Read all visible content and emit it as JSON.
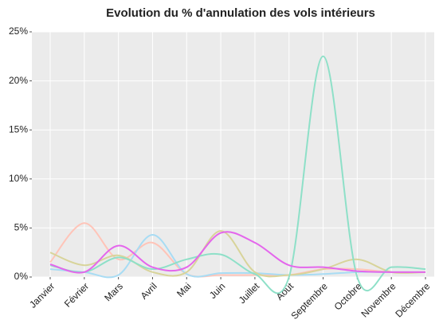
{
  "chart_data": {
    "type": "line",
    "title": "Evolution du % d'annulation des vols intérieurs",
    "categories": [
      "Janvier",
      "Février",
      "Mars",
      "Avril",
      "Mai",
      "Juin",
      "Juillet",
      "Août",
      "Septembre",
      "Octobre",
      "Novembre",
      "Décembre"
    ],
    "series": [
      {
        "color": "#ffc4b8",
        "values": [
          1.5,
          5.5,
          1.8,
          3.5,
          0.3,
          0.2,
          0.2,
          0.2,
          0.8,
          0.8,
          0.5,
          0.5
        ]
      },
      {
        "color": "#a8dcf4",
        "values": [
          0.8,
          0.5,
          0.2,
          4.3,
          0.3,
          0.4,
          0.4,
          0.2,
          0.3,
          0.5,
          0.5,
          0.5
        ]
      },
      {
        "color": "#d8d49a",
        "values": [
          2.5,
          1.2,
          2.2,
          0.5,
          0.5,
          4.7,
          0.5,
          0.2,
          0.8,
          1.8,
          0.5,
          0.5
        ]
      },
      {
        "color": "#8ee0c8",
        "values": [
          1.2,
          0.5,
          2.0,
          0.8,
          1.8,
          2.3,
          0.3,
          0,
          22.5,
          0,
          1.0,
          0.8
        ]
      },
      {
        "color": "#e466ec",
        "values": [
          1.3,
          0.5,
          3.2,
          1.0,
          1.0,
          4.5,
          3.5,
          1.2,
          1.0,
          0.6,
          0.5,
          0.5
        ]
      }
    ],
    "ylim": [
      0,
      25
    ],
    "yticks": [
      {
        "value": 0,
        "label": "0%"
      },
      {
        "value": 5,
        "label": "5%"
      },
      {
        "value": 10,
        "label": "10%"
      },
      {
        "value": 15,
        "label": "15%"
      },
      {
        "value": 20,
        "label": "20%"
      },
      {
        "value": 25,
        "label": "25%"
      }
    ],
    "grid": true
  }
}
